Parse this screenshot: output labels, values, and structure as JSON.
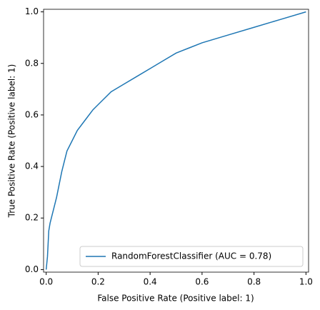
{
  "chart_data": {
    "type": "line",
    "xlabel": "False Positive Rate (Positive label: 1)",
    "ylabel": "True Positive Rate (Positive label: 1)",
    "series": [
      {
        "name": "RandomForestClassifier (AUC = 0.78)",
        "color": "#1f77b4",
        "x": [
          0,
          0.005,
          0.01,
          0.015,
          0.02,
          0.03,
          0.04,
          0.05,
          0.06,
          0.07,
          0.08,
          0.1,
          0.12,
          0.15,
          0.18,
          0.2,
          0.25,
          0.3,
          0.35,
          0.4,
          0.45,
          0.5,
          0.55,
          0.6,
          0.7,
          0.8,
          0.9,
          1
        ],
        "values": [
          0,
          0.05,
          0.15,
          0.18,
          0.2,
          0.24,
          0.28,
          0.33,
          0.38,
          0.42,
          0.46,
          0.5,
          0.54,
          0.58,
          0.62,
          0.64,
          0.69,
          0.72,
          0.75,
          0.78,
          0.81,
          0.84,
          0.86,
          0.88,
          0.91,
          0.94,
          0.97,
          1
        ]
      }
    ],
    "xlim": [
      -0.01,
      1.01
    ],
    "ylim": [
      -0.01,
      1.01
    ],
    "xticks": [
      {
        "value": 0,
        "label": "0.0"
      },
      0.2,
      0.4,
      0.6,
      0.8,
      {
        "value": 1,
        "label": "1.0"
      }
    ],
    "yticks": [
      {
        "value": 0,
        "label": "0.0"
      },
      0.2,
      0.4,
      0.6,
      0.8,
      {
        "value": 1,
        "label": "1.0"
      }
    ],
    "legend": "lower right",
    "grid": false
  }
}
